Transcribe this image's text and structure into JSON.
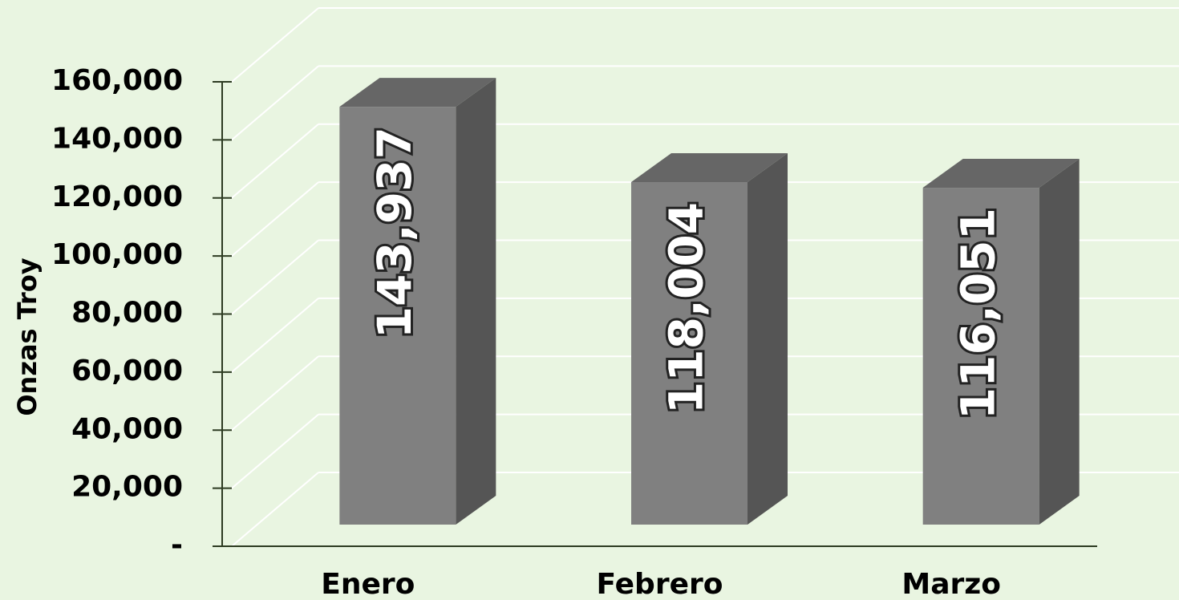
{
  "chart_data": {
    "type": "bar3d",
    "y_label": "Onzas Troy",
    "categories": [
      "Enero",
      "Febrero",
      "Marzo"
    ],
    "values": [
      143937,
      118004,
      116051
    ],
    "value_labels": [
      "143,937",
      "118,004",
      "116,051"
    ],
    "color": "#808080",
    "ylim": [
      0,
      160000
    ],
    "yticks": [
      {
        "value": 0,
        "label": "-"
      },
      {
        "value": 20000,
        "label": "20,000"
      },
      {
        "value": 40000,
        "label": "40,000"
      },
      {
        "value": 60000,
        "label": "60,000"
      },
      {
        "value": 80000,
        "label": "80,000"
      },
      {
        "value": 100000,
        "label": "100,000"
      },
      {
        "value": 120000,
        "label": "120,000"
      },
      {
        "value": 140000,
        "label": "140,000"
      },
      {
        "value": 160000,
        "label": "160,000"
      }
    ],
    "grid": true
  }
}
